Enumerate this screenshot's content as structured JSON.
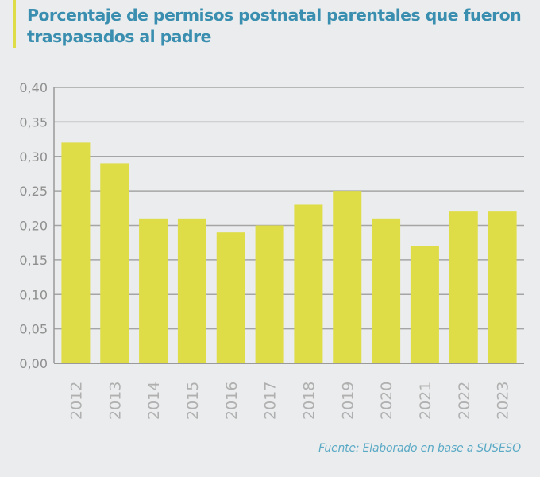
{
  "header": {
    "title": "Porcentaje de permisos postnatal parentales que fueron traspasados al padre"
  },
  "footer": {
    "source": "Fuente: Elaborado en base a SUSESO"
  },
  "colors": {
    "bar": "#dedd47",
    "title": "#3a8fb0",
    "accent": "#dedd47",
    "grid": "#a5a5a5",
    "source": "#5aaac6"
  },
  "chart_data": {
    "type": "bar",
    "title": "Porcentaje de permisos postnatal parentales que fueron traspasados al padre",
    "xlabel": "",
    "ylabel": "",
    "categories": [
      "2012",
      "2013",
      "2014",
      "2015",
      "2016",
      "2017",
      "2018",
      "2019",
      "2020",
      "2021",
      "2022",
      "2023"
    ],
    "values": [
      0.32,
      0.29,
      0.21,
      0.21,
      0.19,
      0.2,
      0.23,
      0.25,
      0.21,
      0.17,
      0.22,
      0.22
    ],
    "ylim": [
      0,
      0.4
    ],
    "yticks": [
      0.0,
      0.05,
      0.1,
      0.15,
      0.2,
      0.25,
      0.3,
      0.35,
      0.4
    ],
    "ytick_labels": [
      "0,00",
      "0,05",
      "0,10",
      "0,15",
      "0,20",
      "0,25",
      "0,30",
      "0,35",
      "0,40"
    ],
    "grid": true,
    "legend": "none",
    "xtick_rotation": "vertical",
    "source": "Fuente: Elaborado en base a SUSESO"
  }
}
